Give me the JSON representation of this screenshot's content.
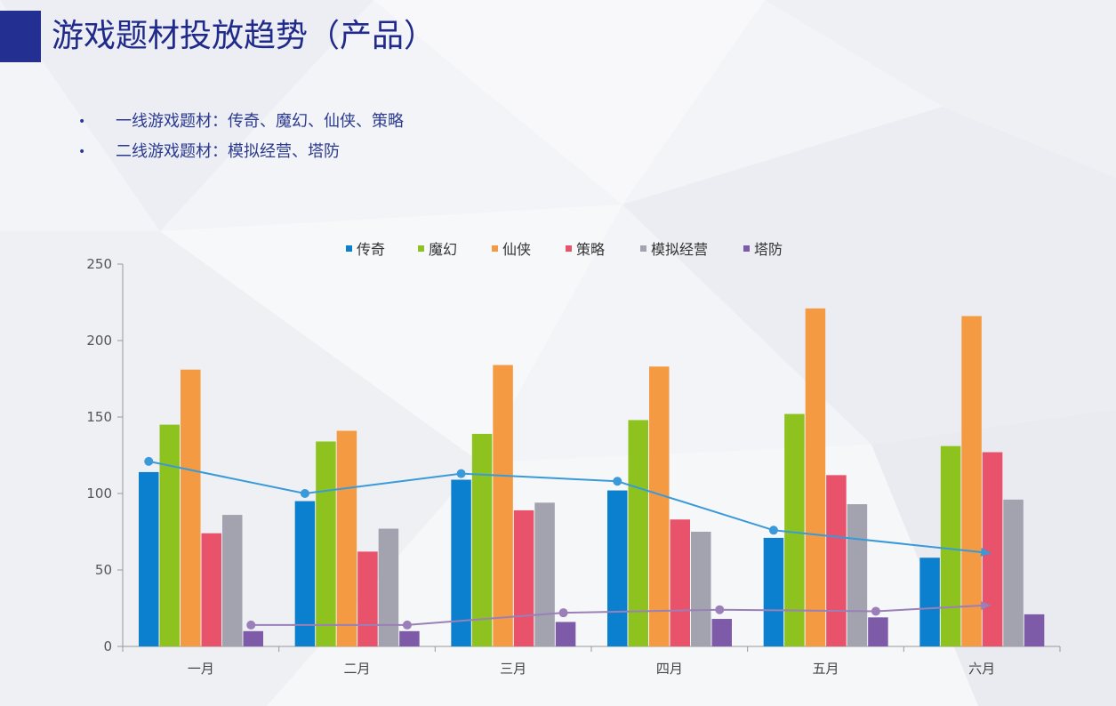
{
  "title": "游戏题材投放趋势（产品）",
  "bullets": [
    "一线游戏题材：传奇、魔幻、仙侠、策略",
    "二线游戏题材：模拟经营、塔防"
  ],
  "chart_data": {
    "type": "bar",
    "categories": [
      "一月",
      "二月",
      "三月",
      "四月",
      "五月",
      "六月"
    ],
    "ylim": [
      0,
      250
    ],
    "yticks": [
      0,
      50,
      100,
      150,
      200,
      250
    ],
    "legend_position": "top",
    "grid": false,
    "xlabel": "",
    "ylabel": "",
    "series": [
      {
        "name": "传奇",
        "color": "#0a80cf",
        "values": [
          114,
          95,
          109,
          102,
          71,
          58
        ]
      },
      {
        "name": "魔幻",
        "color": "#8dc21f",
        "values": [
          145,
          134,
          139,
          148,
          152,
          131
        ]
      },
      {
        "name": "仙侠",
        "color": "#f39a43",
        "values": [
          181,
          141,
          184,
          183,
          221,
          216
        ]
      },
      {
        "name": "策略",
        "color": "#e8526a",
        "values": [
          74,
          62,
          89,
          83,
          112,
          127
        ]
      },
      {
        "name": "模拟经营",
        "color": "#a3a3af",
        "values": [
          86,
          77,
          94,
          75,
          93,
          96
        ]
      },
      {
        "name": "塔防",
        "color": "#7e5ba8",
        "values": [
          10,
          10,
          16,
          18,
          19,
          21
        ]
      }
    ],
    "trendlines": [
      {
        "color": "#3a9ad9",
        "values": [
          121,
          100,
          113,
          108,
          76,
          61
        ]
      },
      {
        "color": "#9a7fb8",
        "values": [
          14,
          14,
          22,
          24,
          23,
          27
        ]
      }
    ]
  }
}
